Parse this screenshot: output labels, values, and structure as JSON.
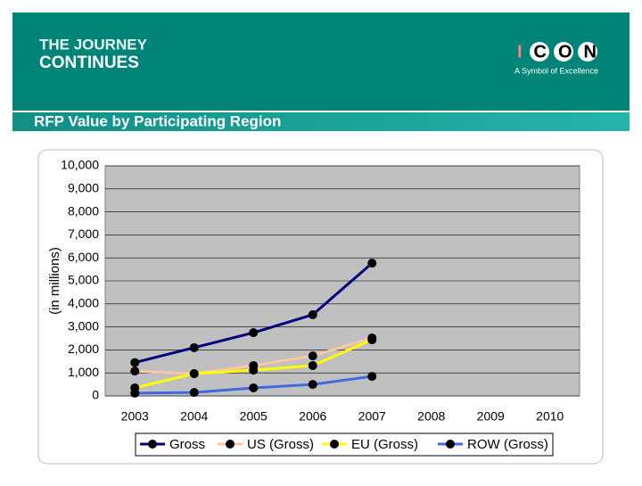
{
  "header": {
    "title_line1": "THE JOURNEY",
    "title_line2": "CONTINUES",
    "logo": "ICON",
    "tagline": "A Symbol of Excellence"
  },
  "slide_title": "RFP Value by Participating Region",
  "chart_data": {
    "type": "line",
    "ylabel": "(in millions)",
    "categories": [
      "2003",
      "2004",
      "2005",
      "2006",
      "2007",
      "2008",
      "2009",
      "2010"
    ],
    "series": [
      {
        "name": "Gross",
        "color": "#000080",
        "values": [
          1450,
          2100,
          2750,
          3530,
          5770,
          null,
          null,
          null
        ]
      },
      {
        "name": "US (Gross)",
        "color": "#f9c7a6",
        "values": [
          1080,
          970,
          1320,
          1740,
          2520,
          null,
          null,
          null
        ]
      },
      {
        "name": "EU (Gross)",
        "color": "#ffff00",
        "values": [
          350,
          970,
          1120,
          1320,
          2440,
          null,
          null,
          null
        ]
      },
      {
        "name": "ROW (Gross)",
        "color": "#4169e1",
        "values": [
          120,
          150,
          350,
          500,
          850,
          null,
          null,
          null
        ]
      }
    ],
    "marker_color": "#000000",
    "ylim": [
      0,
      10000
    ],
    "yticks": [
      0,
      {
        "value": 1000,
        "label": "1,000"
      },
      {
        "value": 2000,
        "label": "2,000"
      },
      {
        "value": 3000,
        "label": "3,000"
      },
      {
        "value": 4000,
        "label": "4,000"
      },
      {
        "value": 5000,
        "label": "5,000"
      },
      {
        "value": 6000,
        "label": "6,000"
      },
      {
        "value": 7000,
        "label": "7,000"
      },
      {
        "value": 8000,
        "label": "8,000"
      },
      {
        "value": 9000,
        "label": "9,000"
      },
      {
        "value": 10000,
        "label": "10,000"
      }
    ],
    "grid": true,
    "legend": "bottom"
  }
}
